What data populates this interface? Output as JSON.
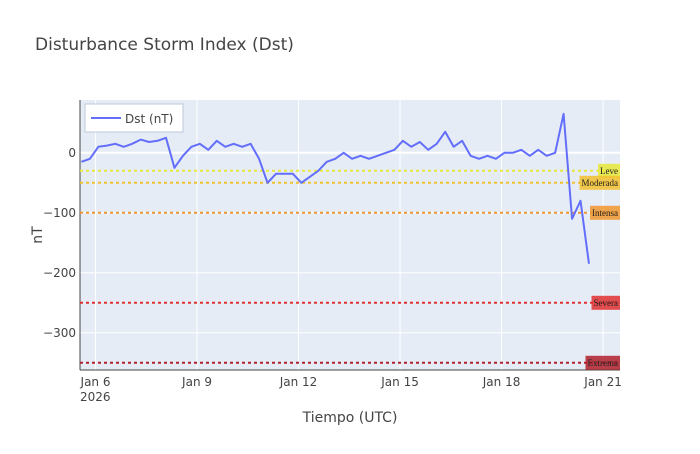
{
  "chart_data": {
    "type": "line",
    "title": "Disturbance Storm Index (Dst)",
    "x_label": "Tiempo (UTC)",
    "y_label": "nT",
    "x_year_label": "2026",
    "x": [
      "2026-01-05T14:00",
      "2026-01-05T20:00",
      "2026-01-06T02:00",
      "2026-01-06T08:00",
      "2026-01-06T14:00",
      "2026-01-06T20:00",
      "2026-01-07T02:00",
      "2026-01-07T08:00",
      "2026-01-07T14:00",
      "2026-01-07T20:00",
      "2026-01-08T02:00",
      "2026-01-08T08:00",
      "2026-01-08T14:00",
      "2026-01-08T20:00",
      "2026-01-09T02:00",
      "2026-01-09T08:00",
      "2026-01-09T14:00",
      "2026-01-09T20:00",
      "2026-01-10T02:00",
      "2026-01-10T08:00",
      "2026-01-10T14:00",
      "2026-01-10T20:00",
      "2026-01-11T02:00",
      "2026-01-11T08:00",
      "2026-01-11T14:00",
      "2026-01-11T20:00",
      "2026-01-12T02:00",
      "2026-01-12T08:00",
      "2026-01-12T14:00",
      "2026-01-12T20:00",
      "2026-01-13T02:00",
      "2026-01-13T08:00",
      "2026-01-13T14:00",
      "2026-01-13T20:00",
      "2026-01-14T02:00",
      "2026-01-14T08:00",
      "2026-01-14T14:00",
      "2026-01-14T20:00",
      "2026-01-15T02:00",
      "2026-01-15T08:00",
      "2026-01-15T14:00",
      "2026-01-15T20:00",
      "2026-01-16T02:00",
      "2026-01-16T08:00",
      "2026-01-16T14:00",
      "2026-01-16T20:00",
      "2026-01-17T02:00",
      "2026-01-17T08:00",
      "2026-01-17T14:00",
      "2026-01-17T20:00",
      "2026-01-18T02:00",
      "2026-01-18T08:00",
      "2026-01-18T14:00",
      "2026-01-18T20:00",
      "2026-01-19T02:00",
      "2026-01-19T08:00",
      "2026-01-19T14:00",
      "2026-01-19T20:00",
      "2026-01-20T02:00",
      "2026-01-20T08:00",
      "2026-01-20T14:00"
    ],
    "series": [
      {
        "name": "Dst (nT)",
        "color": "#636efa",
        "values": [
          -15,
          -10,
          10,
          12,
          15,
          10,
          15,
          22,
          18,
          20,
          25,
          -25,
          -5,
          10,
          15,
          5,
          20,
          10,
          15,
          10,
          15,
          -10,
          -50,
          -35,
          -35,
          -35,
          -50,
          -40,
          -30,
          -15,
          -10,
          0,
          -10,
          -5,
          -10,
          -5,
          0,
          5,
          20,
          10,
          18,
          5,
          15,
          35,
          10,
          20,
          -5,
          -10,
          -5,
          -10,
          0,
          0,
          5,
          -5,
          5,
          -5,
          0,
          65,
          -110,
          -80,
          -185
        ]
      }
    ],
    "thresholds": [
      {
        "name": "Leve",
        "value": -30,
        "color": "#e8e83a"
      },
      {
        "name": "Moderada",
        "value": -50,
        "color": "#f2c12e"
      },
      {
        "name": "Intensa",
        "value": -100,
        "color": "#f0962e"
      },
      {
        "name": "Severa",
        "value": -250,
        "color": "#e03030"
      },
      {
        "name": "Extrema",
        "value": -350,
        "color": "#b0202a"
      }
    ],
    "xlim": [
      "2026-01-05T13:00",
      "2026-01-21T12:00"
    ],
    "xticks": [
      {
        "value": "2026-01-06T00:00",
        "label": "Jan 6"
      },
      {
        "value": "2026-01-09T00:00",
        "label": "Jan 9"
      },
      {
        "value": "2026-01-12T00:00",
        "label": "Jan 12"
      },
      {
        "value": "2026-01-15T00:00",
        "label": "Jan 15"
      },
      {
        "value": "2026-01-18T00:00",
        "label": "Jan 18"
      },
      {
        "value": "2026-01-21T00:00",
        "label": "Jan 21"
      }
    ],
    "ylim": [
      -362,
      88
    ],
    "yticks": [
      {
        "value": -300,
        "label": "−300"
      },
      {
        "value": -200,
        "label": "−200"
      },
      {
        "value": -100,
        "label": "−100"
      },
      0
    ],
    "grid": true,
    "legend": "top-left"
  }
}
